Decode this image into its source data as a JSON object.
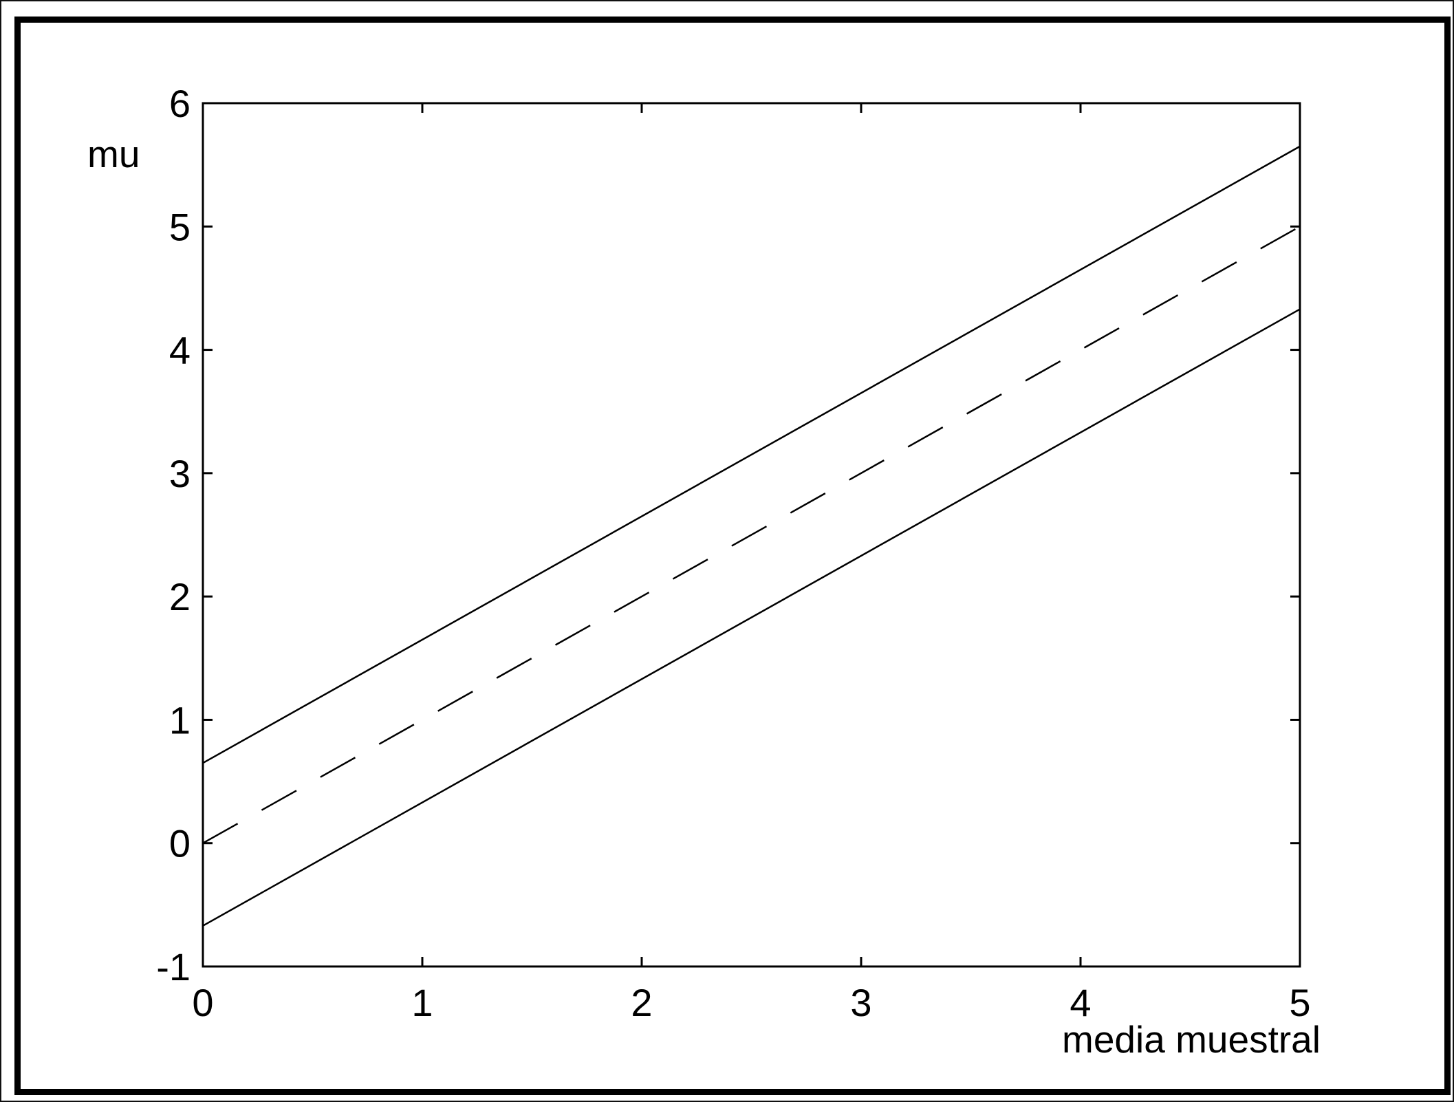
{
  "chart_data": {
    "type": "line",
    "title": "",
    "xlabel": "media muestral",
    "ylabel": "mu",
    "xlim": [
      0,
      5
    ],
    "ylim": [
      -1,
      6
    ],
    "xticks": [
      "0",
      "1",
      "2",
      "3",
      "4",
      "5"
    ],
    "yticks": [
      "-1",
      "0",
      "1",
      "2",
      "3",
      "4",
      "5",
      "6"
    ],
    "grid": false,
    "legend": "none",
    "line_color": "#000000",
    "x": [
      0,
      5
    ],
    "series": [
      {
        "style": "solid",
        "values": [
          0.65,
          5.65
        ]
      },
      {
        "style": "dashed",
        "values": [
          0.0,
          5.0
        ]
      },
      {
        "style": "solid",
        "values": [
          -0.67,
          4.33
        ]
      }
    ]
  }
}
